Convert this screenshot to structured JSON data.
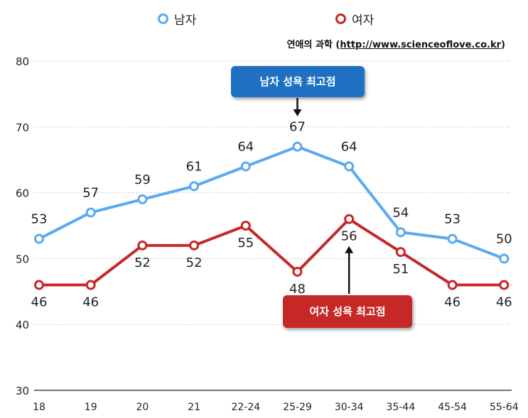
{
  "legend": [
    {
      "label": "남자",
      "color": "#5aaaf0"
    },
    {
      "label": "여자",
      "color": "#c62828"
    }
  ],
  "source": {
    "prefix": "연애의 과학 (",
    "url": "http://www.scienceoflove.co.kr",
    "suffix": ")"
  },
  "callouts": {
    "male": {
      "label": "남자 성욕 최고점",
      "color": "#1f6fc2"
    },
    "female": {
      "label": "여자 성욕 최고점",
      "color": "#c62828"
    }
  },
  "chart_data": {
    "type": "line",
    "categories": [
      "18",
      "19",
      "20",
      "21",
      "22-24",
      "25-29",
      "30-34",
      "35-44",
      "45-54",
      "55-64"
    ],
    "ylim": [
      30,
      80
    ],
    "yticks": [
      30,
      40,
      50,
      60,
      70,
      80
    ],
    "grid": true,
    "legend_position": "top",
    "series": [
      {
        "name": "남자",
        "color": "#5aaaf0",
        "values": [
          53,
          57,
          59,
          61,
          64,
          67,
          64,
          54,
          53,
          50
        ],
        "label_pos": "above"
      },
      {
        "name": "여자",
        "color": "#c62828",
        "values": [
          46,
          46,
          52,
          52,
          55,
          48,
          56,
          51,
          46,
          46
        ],
        "label_pos": "below"
      }
    ]
  }
}
